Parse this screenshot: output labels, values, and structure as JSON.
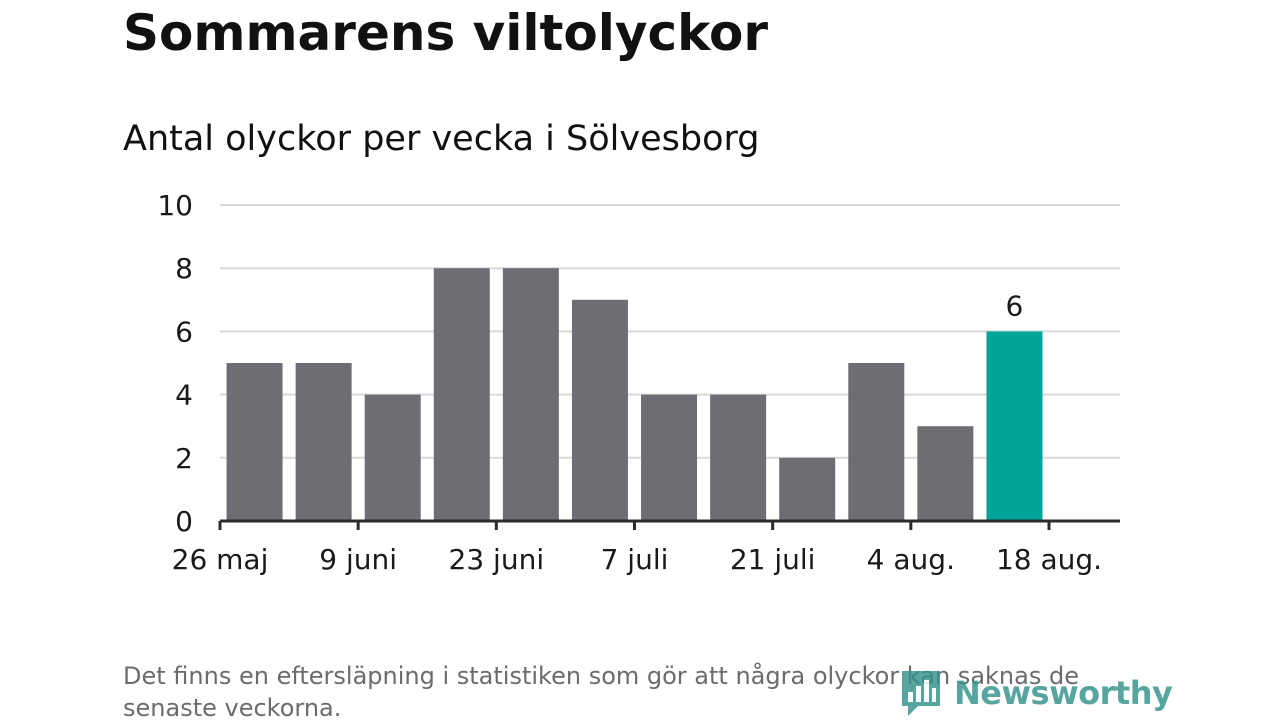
{
  "colors": {
    "bar": "#6e6d73",
    "highlight": "#00a499",
    "grid": "#d9d9d9",
    "axis": "#2b2b2b",
    "footnote": "#6b6b70",
    "brand": "#33928b"
  },
  "brand": {
    "name": "Newsworthy",
    "icon": "bar-chart-speech-bubble-icon"
  },
  "footnote": "Det finns en eftersläpning i statistiken som gör att några olyckor kan saknas de senaste veckorna.",
  "chart_data": {
    "type": "bar",
    "title": "Sommarens viltolyckor",
    "subtitle": "Antal olyckor per vecka i Sölvesborg",
    "xlabel": "",
    "ylabel": "",
    "x": [
      "2019-05-26",
      "2019-06-02",
      "2019-06-09",
      "2019-06-16",
      "2019-06-23",
      "2019-06-30",
      "2019-07-07",
      "2019-07-14",
      "2019-07-21",
      "2019-07-28",
      "2019-08-04",
      "2019-08-11",
      "2019-08-18"
    ],
    "x_ticks": [
      {
        "x": "2019-05-26",
        "label": "26 maj"
      },
      {
        "x": "2019-06-09",
        "label": "9 juni"
      },
      {
        "x": "2019-06-23",
        "label": "23 juni"
      },
      {
        "x": "2019-07-07",
        "label": "7 juli"
      },
      {
        "x": "2019-07-21",
        "label": "21 juli"
      },
      {
        "x": "2019-08-04",
        "label": "4 aug."
      },
      {
        "x": "2019-08-18",
        "label": "18 aug."
      }
    ],
    "bars": [
      {
        "week_start": "2019-06-02",
        "value": 5
      },
      {
        "week_start": "2019-06-09",
        "value": 5
      },
      {
        "week_start": "2019-06-16",
        "value": 4
      },
      {
        "week_start": "2019-06-23",
        "value": 8
      },
      {
        "week_start": "2019-06-30",
        "value": 8
      },
      {
        "week_start": "2019-07-07",
        "value": 7
      },
      {
        "week_start": "2019-07-14",
        "value": 4
      },
      {
        "week_start": "2019-07-21",
        "value": 4
      },
      {
        "week_start": "2019-07-28",
        "value": 2
      },
      {
        "week_start": "2019-08-04",
        "value": 5
      },
      {
        "week_start": "2019-08-11",
        "value": 3
      },
      {
        "week_start": "2019-08-18",
        "value": 6,
        "highlight": true,
        "label": "6"
      }
    ],
    "ylim": [
      0,
      10
    ],
    "y_ticks": [
      0,
      2,
      4,
      6,
      8,
      10
    ],
    "grid": true,
    "legend": "none"
  }
}
